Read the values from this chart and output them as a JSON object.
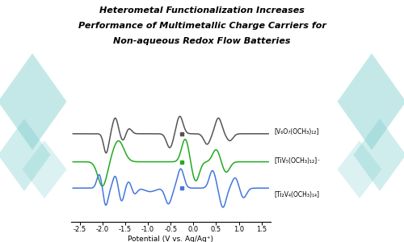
{
  "title_line1": "Heterometal Functionalization Increases",
  "title_line2": "Performance of Multimetallic Charge Carriers for",
  "title_line3": "Non-aqueous Redox Flow Batteries",
  "xlabel": "Potential (V vs. Ag/Ag⁺)",
  "xlim": [
    -2.7,
    1.7
  ],
  "xticks": [
    -2.5,
    -2.0,
    -1.5,
    -1.0,
    -0.5,
    0.0,
    0.5,
    1.0,
    1.5
  ],
  "curve_colors": [
    "#555555",
    "#22aa22",
    "#4477dd"
  ],
  "label1": "[V₆O₇(OCH₃)₁₂]",
  "label2": "[TiV₅(OCH₃)₁₂]⁻",
  "label3": "[Ti₂V₄(OCH₃)₁₄]",
  "octahedron_color": "#7ecece",
  "octahedron_alpha": 0.45
}
